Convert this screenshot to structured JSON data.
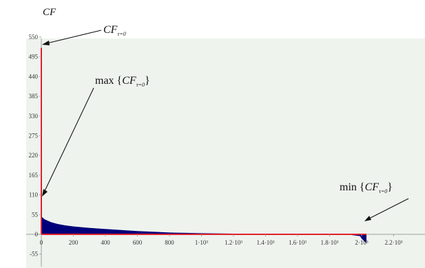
{
  "chart_data": {
    "type": "area",
    "ylabel": "CF",
    "title": "",
    "xlabel": "",
    "xlim": [
      0,
      2300
    ],
    "ylim": [
      -70,
      600
    ],
    "x_ticks": [
      {
        "v": 0,
        "label": "0"
      },
      {
        "v": 200,
        "label": "200"
      },
      {
        "v": 400,
        "label": "400"
      },
      {
        "v": 600,
        "label": "600"
      },
      {
        "v": 800,
        "label": "800"
      },
      {
        "v": 1000,
        "label": "1·10³"
      },
      {
        "v": 1200,
        "label": "1.2·10³"
      },
      {
        "v": 1400,
        "label": "1.4·10³"
      },
      {
        "v": 1600,
        "label": "1.6·10³"
      },
      {
        "v": 1800,
        "label": "1.8·10³"
      },
      {
        "v": 2000,
        "label": "2·10³"
      },
      {
        "v": 2200,
        "label": "2.2·10³"
      }
    ],
    "y_ticks": [
      {
        "v": 550,
        "label": "550"
      },
      {
        "v": 495,
        "label": "495"
      },
      {
        "v": 440,
        "label": "440"
      },
      {
        "v": 385,
        "label": "385"
      },
      {
        "v": 330,
        "label": "330"
      },
      {
        "v": 275,
        "label": "275"
      },
      {
        "v": 220,
        "label": "220"
      },
      {
        "v": 165,
        "label": "165"
      },
      {
        "v": 110,
        "label": "110"
      },
      {
        "v": 55,
        "label": "55"
      },
      {
        "v": 0,
        "label": "0"
      },
      {
        "v": -55,
        "label": "-55"
      }
    ],
    "series": [
      {
        "color": "#00007a",
        "x": [
          0,
          20,
          60,
          100,
          150,
          200,
          300,
          400,
          500,
          600,
          700,
          800,
          900,
          1000,
          1200,
          1400,
          1600,
          1800,
          1900,
          1990,
          2000,
          2030
        ],
        "y": [
          50,
          42,
          34,
          29,
          25,
          22,
          18,
          15,
          12,
          9,
          7,
          5,
          4,
          3,
          2,
          1,
          0.5,
          0.2,
          0,
          -5,
          -12,
          -25
        ]
      }
    ],
    "overlay": {
      "color": "#e0202a",
      "spike": {
        "x": 0,
        "y": 520
      },
      "baseline": {
        "x_start": 0,
        "x_end": 2030,
        "y": 0
      }
    },
    "annotations": [
      {
        "id": "cf0",
        "prefix": "",
        "main": "CF",
        "sub": "τ=0",
        "braces": false,
        "target": {
          "x": 0,
          "y": 580
        }
      },
      {
        "id": "max",
        "prefix": "max",
        "main": "CF",
        "sub": "τ=0",
        "braces": true,
        "target": {
          "x": 0,
          "y": 110
        }
      },
      {
        "id": "min",
        "prefix": "min",
        "main": "CF",
        "sub": "τ=0",
        "braces": true,
        "target": {
          "x": 2030,
          "y": 15
        }
      }
    ],
    "colors": {
      "plot_bg": "#eef3ee",
      "axis": "#9aa09a",
      "fill": "#00007a",
      "highlight": "#e0202a"
    }
  }
}
